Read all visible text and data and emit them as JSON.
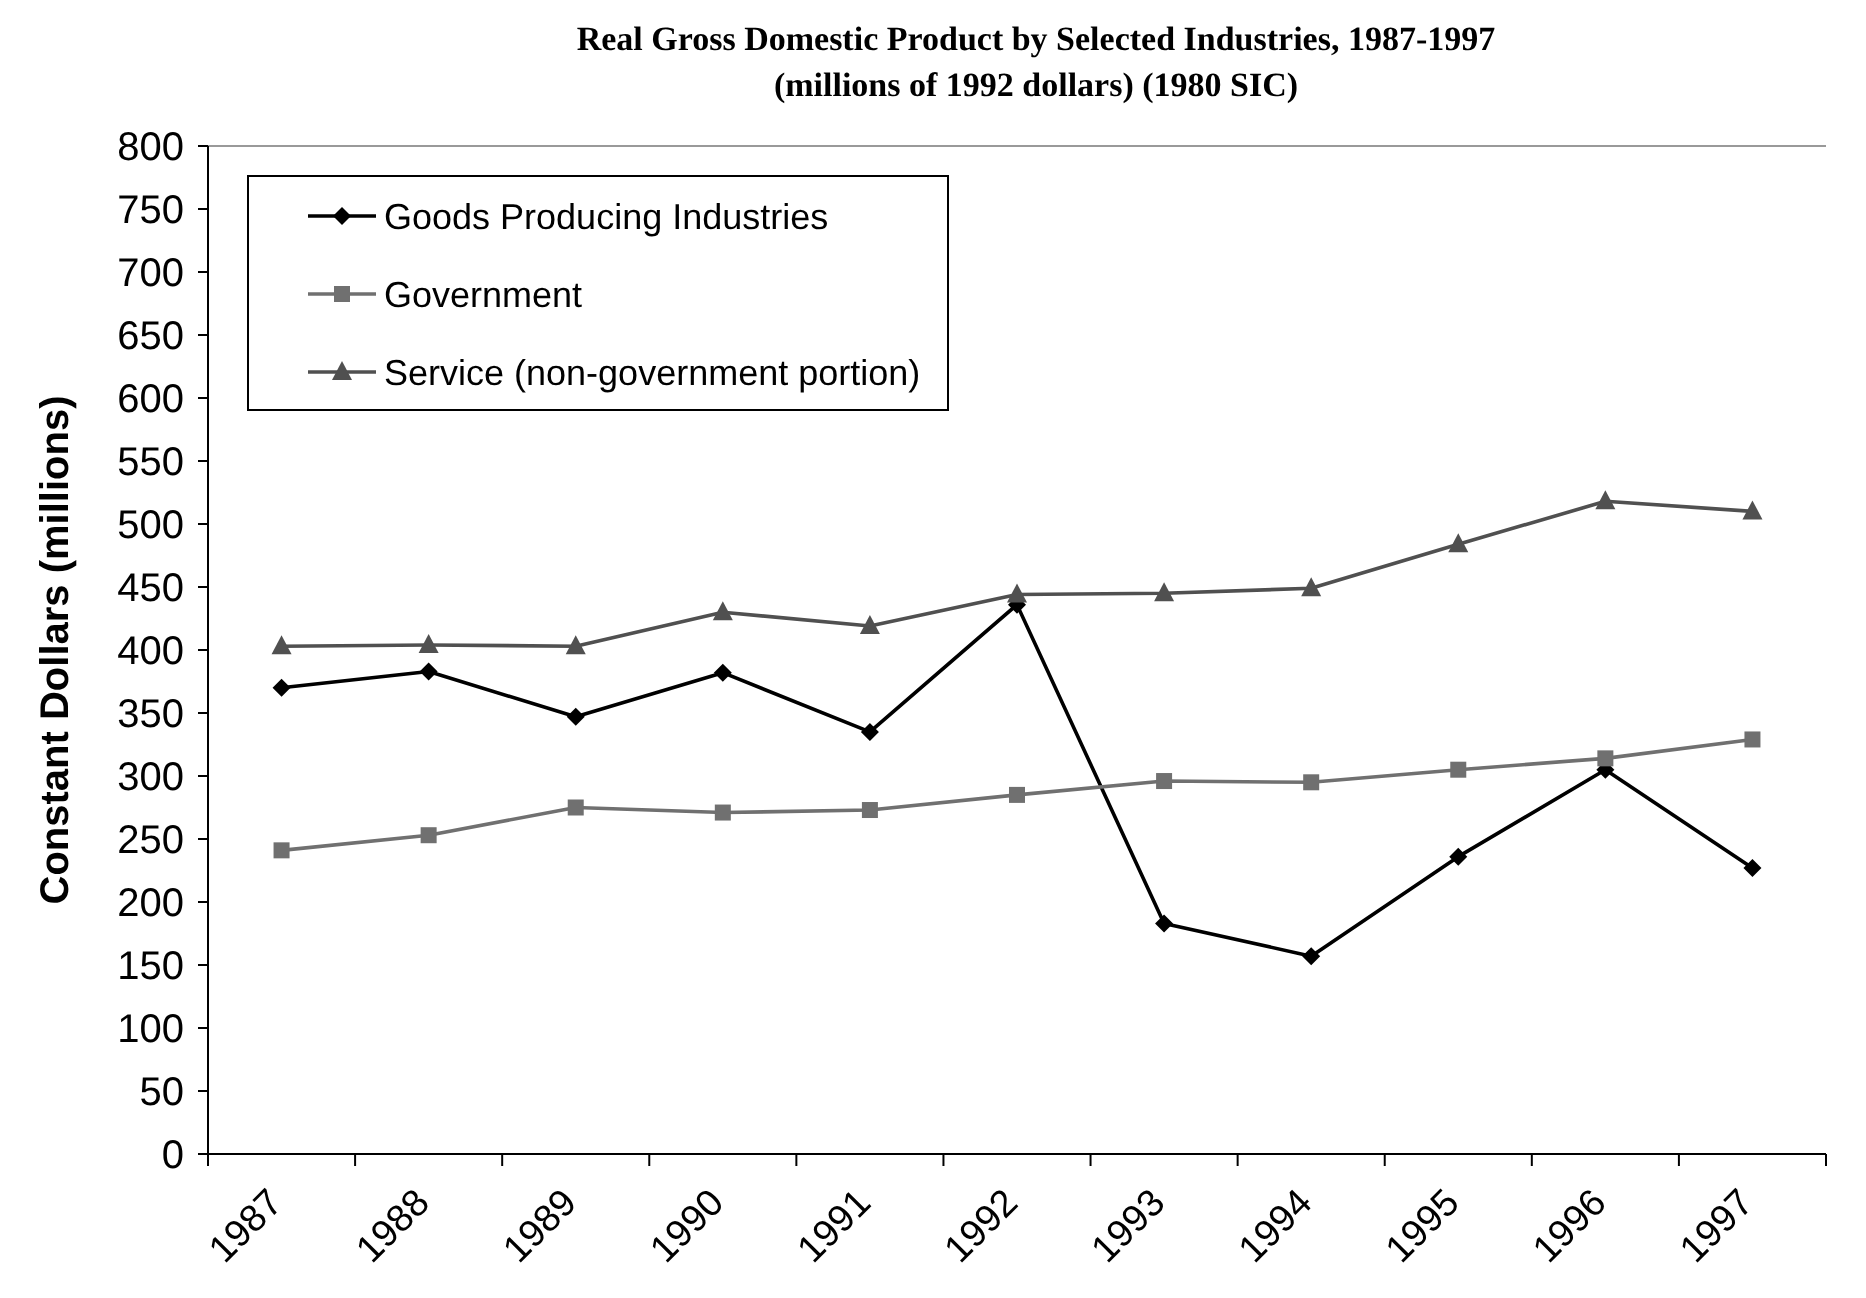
{
  "chart_data": {
    "type": "line",
    "title": "Real Gross Domestic Product by Selected Industries, 1987-1997",
    "subtitle": "(millions of 1992 dollars) (1980 SIC)",
    "ylabel": "Constant Dollars (millions)",
    "categories": [
      "1987",
      "1988",
      "1989",
      "1990",
      "1991",
      "1992",
      "1993",
      "1994",
      "1995",
      "1996",
      "1997"
    ],
    "ylim": [
      0,
      800
    ],
    "yticks": [
      0,
      50,
      100,
      150,
      200,
      250,
      300,
      350,
      400,
      450,
      500,
      550,
      600,
      650,
      700,
      750,
      800
    ],
    "legend": "top left",
    "grid": false,
    "series": [
      {
        "name": "Goods Producing Industries",
        "color": "#000000",
        "marker": "diamond",
        "values": [
          370,
          383,
          347,
          382,
          335,
          436,
          183,
          157,
          236,
          305,
          227
        ]
      },
      {
        "name": "Government",
        "color": "#707070",
        "marker": "square",
        "values": [
          241,
          253,
          275,
          271,
          273,
          285,
          296,
          295,
          305,
          314,
          329
        ]
      },
      {
        "name": "Service (non-government portion)",
        "color": "#505050",
        "marker": "triangle",
        "values": [
          403,
          404,
          403,
          430,
          419,
          444,
          445,
          449,
          484,
          518,
          510
        ]
      }
    ]
  }
}
